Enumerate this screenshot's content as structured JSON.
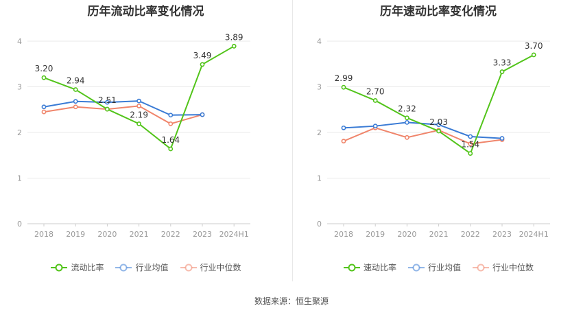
{
  "source": "数据来源：恒生聚源",
  "colors": {
    "company": "#52c41a",
    "industry_avg": "#3a7bd5",
    "industry_median": "#f0856b",
    "axis": "#999999",
    "grid": "#e8e8e8"
  },
  "chart_data": [
    {
      "type": "line",
      "title": "历年流动比率变化情况",
      "categories": [
        "2018",
        "2019",
        "2020",
        "2021",
        "2022",
        "2023",
        "2024H1"
      ],
      "ylim": [
        0,
        4
      ],
      "yticks": [
        0,
        1,
        2,
        3,
        4
      ],
      "grid": true,
      "legend_position": "bottom",
      "series": [
        {
          "name": "流动比率",
          "key": "company",
          "labels": true,
          "values": [
            3.2,
            2.94,
            2.51,
            2.19,
            1.64,
            3.49,
            3.89
          ],
          "value_labels": [
            "3.20",
            "2.94",
            "2.51",
            "2.19",
            "1.64",
            "3.49",
            "3.89"
          ]
        },
        {
          "name": "行业均值",
          "key": "industry_avg",
          "values": [
            2.56,
            2.68,
            2.66,
            2.69,
            2.38,
            2.39,
            null
          ]
        },
        {
          "name": "行业中位数",
          "key": "industry_median",
          "values": [
            2.45,
            2.56,
            2.51,
            2.58,
            2.19,
            2.39,
            null
          ]
        }
      ]
    },
    {
      "type": "line",
      "title": "历年速动比率变化情况",
      "categories": [
        "2018",
        "2019",
        "2020",
        "2021",
        "2022",
        "2023",
        "2024H1"
      ],
      "ylim": [
        0,
        4
      ],
      "yticks": [
        0,
        1,
        2,
        3,
        4
      ],
      "grid": true,
      "legend_position": "bottom",
      "series": [
        {
          "name": "速动比率",
          "key": "company",
          "labels": true,
          "values": [
            2.99,
            2.7,
            2.32,
            2.03,
            1.54,
            3.33,
            3.7
          ],
          "value_labels": [
            "2.99",
            "2.70",
            "2.32",
            "2.03",
            "1.54",
            "3.33",
            "3.70"
          ]
        },
        {
          "name": "行业均值",
          "key": "industry_avg",
          "values": [
            2.1,
            2.14,
            2.22,
            2.17,
            1.91,
            1.87,
            null
          ]
        },
        {
          "name": "行业中位数",
          "key": "industry_median",
          "values": [
            1.81,
            2.1,
            1.89,
            2.05,
            1.75,
            1.84,
            null
          ]
        }
      ]
    }
  ]
}
